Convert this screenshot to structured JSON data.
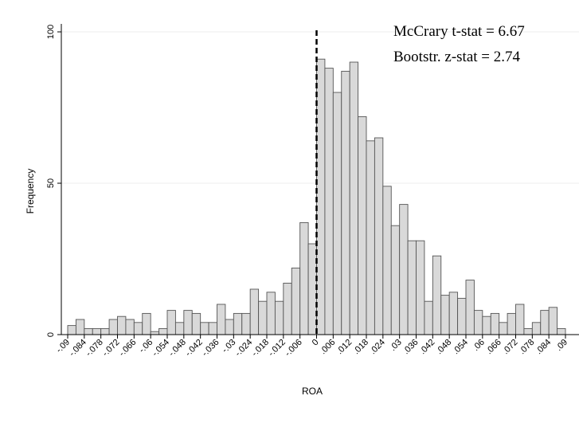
{
  "chart_data": {
    "type": "bar",
    "xlabel": "ROA",
    "ylabel": "Frequency",
    "ylim": [
      0,
      100
    ],
    "y_ticks": [
      0,
      50,
      100
    ],
    "x_range": [
      -0.09,
      0.09
    ],
    "bin_width": 0.003,
    "x_tick_labels": [
      "-.09",
      "-.084",
      "-.078",
      "-.072",
      "-.066",
      "-.06",
      "-.054",
      "-.048",
      "-.042",
      "-.036",
      "-.03",
      "-.024",
      "-.018",
      "-.012",
      "-.006",
      "0",
      ".006",
      ".012",
      ".018",
      ".024",
      ".03",
      ".036",
      ".042",
      ".048",
      ".054",
      ".06",
      ".066",
      ".072",
      ".078",
      ".084",
      ".09"
    ],
    "x_tick_values": [
      -0.09,
      -0.084,
      -0.078,
      -0.072,
      -0.066,
      -0.06,
      -0.054,
      -0.048,
      -0.042,
      -0.036,
      -0.03,
      -0.024,
      -0.018,
      -0.012,
      -0.006,
      0,
      0.006,
      0.012,
      0.018,
      0.024,
      0.03,
      0.036,
      0.042,
      0.048,
      0.054,
      0.06,
      0.066,
      0.072,
      0.078,
      0.084,
      0.09
    ],
    "values": [
      3,
      5,
      2,
      2,
      2,
      5,
      6,
      5,
      4,
      7,
      1,
      2,
      8,
      4,
      8,
      7,
      4,
      4,
      10,
      5,
      7,
      7,
      15,
      11,
      14,
      11,
      17,
      22,
      37,
      30,
      91,
      88,
      80,
      87,
      90,
      72,
      64,
      65,
      49,
      36,
      43,
      31,
      31,
      11,
      26,
      13,
      14,
      12,
      18,
      8,
      6,
      7,
      4,
      7,
      10,
      2,
      4,
      8,
      9,
      2
    ],
    "cutoff": 0,
    "grid": "horizontal",
    "annotations": [
      "McCrary t-stat = 6.67",
      "Bootstr. z-stat = 2.74"
    ],
    "colors": {
      "bar_fill": "#d9d9d9",
      "bar_stroke": "#555555",
      "grid": "#ececec",
      "cutoff_line": "#000000"
    }
  }
}
